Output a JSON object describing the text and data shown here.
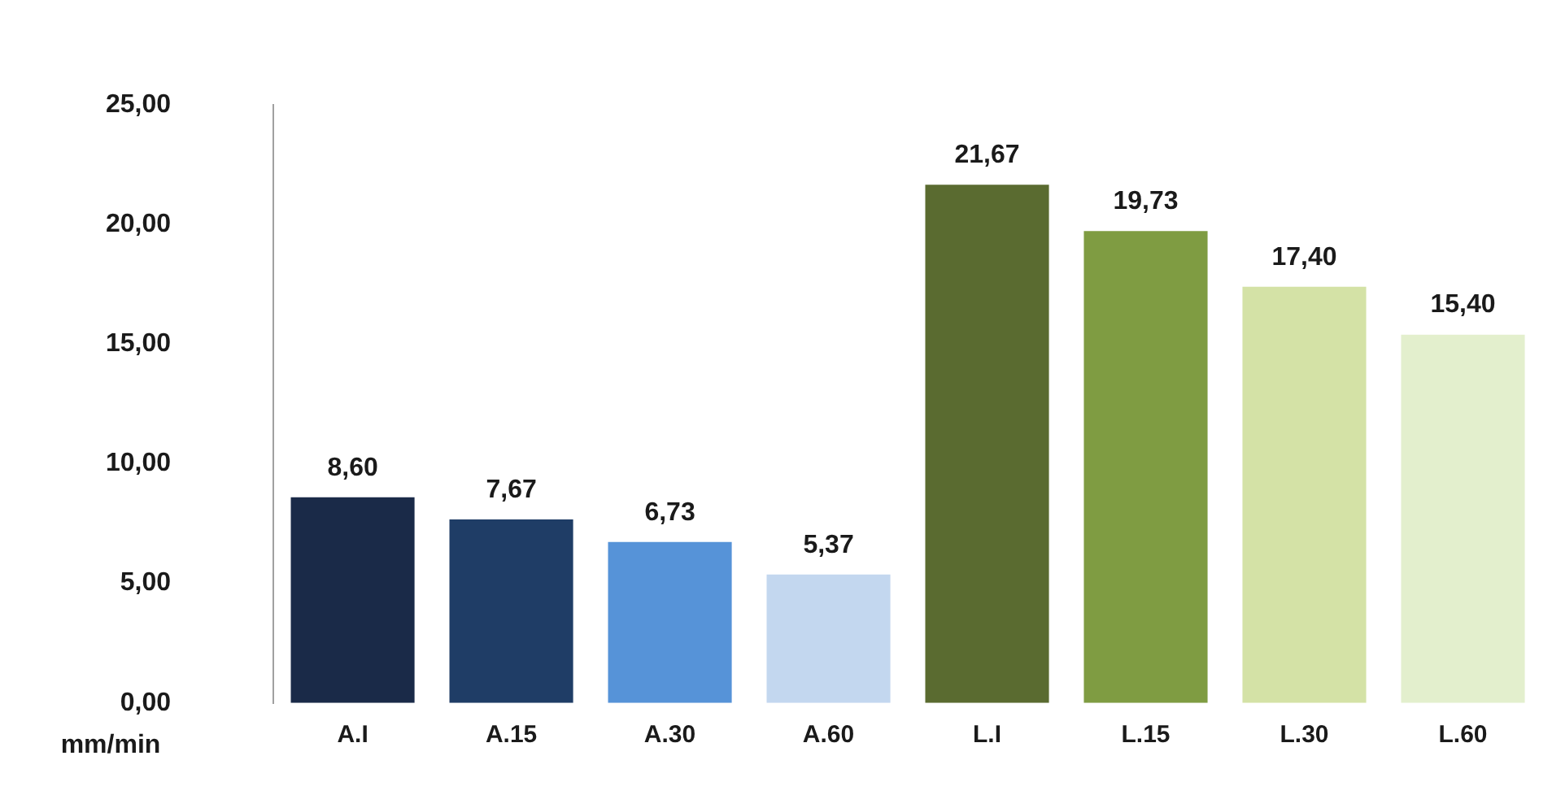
{
  "chart_data": {
    "type": "bar",
    "ylabel": "mm/min",
    "categories": [
      "A.I",
      "A.15",
      "A.30",
      "A.60",
      "L.I",
      "L.15",
      "L.30",
      "L.60"
    ],
    "values": [
      8.6,
      7.67,
      6.73,
      5.37,
      21.67,
      19.73,
      17.4,
      15.4
    ],
    "colors": [
      "#1a2a48",
      "#1f3d66",
      "#5693d8",
      "#c3d7ef",
      "#5a6b30",
      "#7f9c42",
      "#d4e2a6",
      "#e3efcd"
    ],
    "value_labels": [
      "8,60",
      "7,67",
      "6,73",
      "5,37",
      "21,67",
      "19,73",
      "17,40",
      "15,40"
    ],
    "ylim": [
      0,
      25
    ],
    "yticks": [
      {
        "value": 0,
        "label": "0,00"
      },
      {
        "value": 5,
        "label": "5,00"
      },
      {
        "value": 10,
        "label": "10,00"
      },
      {
        "value": 15,
        "label": "15,00"
      },
      {
        "value": 20,
        "label": "20,00"
      },
      {
        "value": 25,
        "label": "25,00"
      }
    ],
    "grid": false
  }
}
